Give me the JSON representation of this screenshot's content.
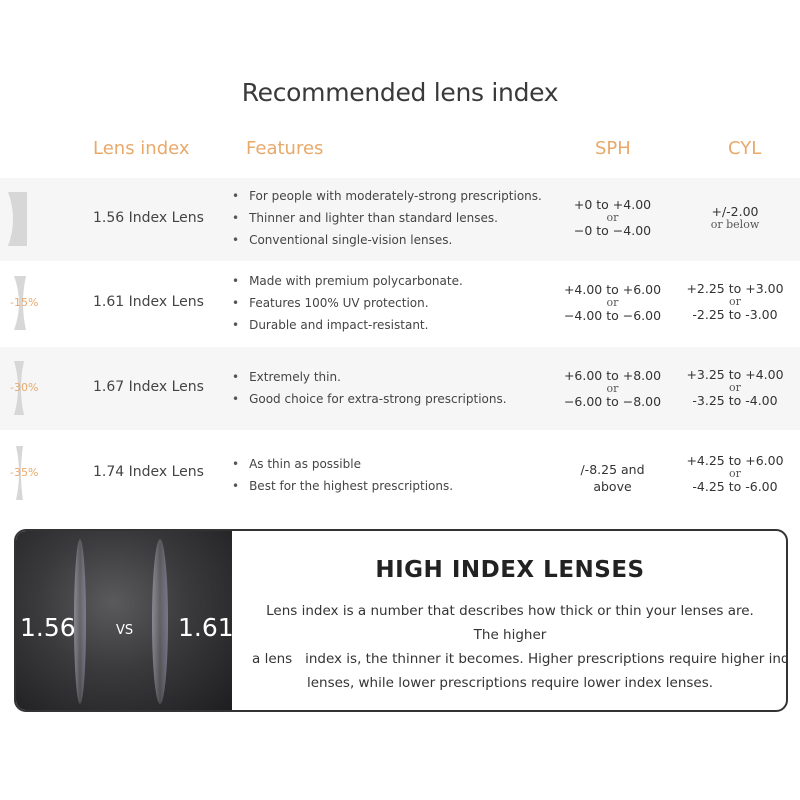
{
  "title": "Recommended lens index",
  "headers": {
    "lens_index": "Lens index",
    "features": "Features",
    "sph": "SPH",
    "cyl": "CYL"
  },
  "accent_color": "#e8a96a",
  "rows": [
    {
      "name": "1.56 Index Lens",
      "reduction": "",
      "features": [
        "For people with moderately-strong prescriptions.",
        "Thinner and lighter than standard lenses.",
        "Conventional single-vision lenses."
      ],
      "sph": [
        "+0 to +4.00",
        "or",
        "−0 to −4.00"
      ],
      "cyl": [
        "+/-2.00",
        "or below"
      ]
    },
    {
      "name": "1.61 Index Lens",
      "reduction": "-15%",
      "features": [
        "Made with premium polycarbonate.",
        "Features 100% UV protection.",
        "Durable and impact-resistant."
      ],
      "sph": [
        "+4.00 to +6.00",
        "or",
        "−4.00 to −6.00"
      ],
      "cyl": [
        "+2.25 to +3.00",
        "or",
        "-2.25 to -3.00"
      ]
    },
    {
      "name": "1.67 Index Lens",
      "reduction": "-30%",
      "features": [
        "Extremely thin.",
        "Good choice for extra-strong prescriptions."
      ],
      "sph": [
        "+6.00 to +8.00",
        "or",
        "−6.00 to −8.00"
      ],
      "cyl": [
        "+3.25 to +4.00",
        "or",
        "-3.25 to -4.00"
      ]
    },
    {
      "name": "1.74 Index Lens",
      "reduction": "-35%",
      "features": [
        "As thin as possible",
        "Best for the highest prescriptions."
      ],
      "sph": [
        "/-8.25 and",
        "above"
      ],
      "cyl": [
        "+4.25 to +6.00",
        "or",
        "-4.25 to -6.00"
      ]
    }
  ],
  "panel": {
    "left_label": "1.56",
    "vs": "VS",
    "right_label": "1.61",
    "title": "HIGH INDEX LENSES",
    "lines": [
      "Lens index is a number that describes how thick or thin your lenses are. The higher",
      "a lens   index is, the thinner it becomes. Higher prescriptions require higher index",
      "lenses, while lower prescriptions require lower index lenses."
    ]
  }
}
